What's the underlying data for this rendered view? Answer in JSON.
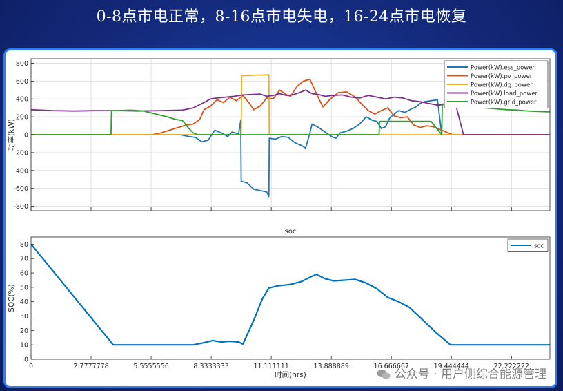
{
  "slide": {
    "title": "0-8点市电正常，8-16点市电失电，16-24点市电恢复"
  },
  "watermark": {
    "text": "公众号 · 用户侧综合能源管理",
    "icon": "wechat-icon"
  },
  "chart_data": [
    {
      "type": "line",
      "title": "",
      "xlabel": "",
      "ylabel": "功率(kW)",
      "xlim": [
        0,
        24
      ],
      "ylim": [
        -850,
        850
      ],
      "yticks": [
        800,
        600,
        400,
        200,
        0,
        -200,
        -400,
        -600,
        -800
      ],
      "grid": true,
      "legend": "top-right",
      "series": [
        {
          "name": "Power(kW).ess_power",
          "color": "#1f77b4",
          "x": [
            0,
            3.7,
            6.9,
            7.3,
            7.6,
            7.9,
            8.2,
            8.5,
            8.8,
            9.1,
            9.3,
            9.6,
            9.7,
            9.72,
            10,
            10.3,
            10.5,
            10.9,
            11.0,
            11.02,
            11.05,
            11.3,
            11.6,
            11.9,
            12.2,
            12.5,
            12.7,
            12.9,
            13.0,
            13.3,
            13.6,
            13.9,
            14.1,
            14.3,
            14.6,
            14.9,
            15.2,
            15.5,
            15.8,
            16.0,
            16.2,
            16.4,
            16.6,
            16.8,
            17.0,
            17.3,
            17.6,
            17.8,
            18.0,
            18.2,
            18.5,
            18.8,
            19.0,
            19.2,
            19.5,
            20.0,
            24
          ],
          "y": [
            0,
            0,
            0,
            -20,
            -30,
            -80,
            -60,
            50,
            20,
            -20,
            30,
            10,
            160,
            -520,
            -540,
            -610,
            -620,
            -640,
            -690,
            -40,
            -40,
            -50,
            -20,
            -30,
            -90,
            -120,
            -150,
            20,
            120,
            80,
            30,
            -20,
            -40,
            20,
            40,
            70,
            120,
            200,
            160,
            150,
            70,
            90,
            190,
            230,
            270,
            250,
            290,
            310,
            350,
            370,
            380,
            390,
            0,
            0,
            0,
            0,
            0
          ]
        },
        {
          "name": "Power(kW).pv_power",
          "color": "#d95319",
          "x": [
            0,
            5.6,
            6.0,
            6.4,
            6.8,
            7.2,
            7.5,
            7.8,
            8.0,
            8.3,
            8.6,
            8.9,
            9.2,
            9.5,
            9.8,
            10.1,
            10.3,
            10.6,
            10.9,
            11.2,
            11.5,
            11.8,
            12.0,
            12.3,
            12.6,
            12.9,
            13.2,
            13.5,
            13.8,
            14.2,
            14.6,
            15.0,
            15.3,
            15.6,
            15.9,
            16.2,
            16.5,
            16.8,
            17.1,
            17.4,
            17.7,
            18.0,
            18.3,
            18.6,
            19.0,
            19.5,
            24
          ],
          "y": [
            0,
            0,
            20,
            50,
            80,
            110,
            120,
            170,
            280,
            320,
            390,
            360,
            420,
            380,
            440,
            350,
            280,
            320,
            410,
            400,
            500,
            450,
            430,
            540,
            600,
            620,
            460,
            310,
            390,
            470,
            480,
            420,
            340,
            270,
            230,
            270,
            300,
            210,
            190,
            200,
            110,
            80,
            100,
            90,
            50,
            0,
            0
          ]
        },
        {
          "name": "Power(kW).dg_power",
          "color": "#edb120",
          "x": [
            0,
            9.72,
            9.74,
            10.3,
            10.8,
            11.0,
            11.02,
            24
          ],
          "y": [
            0,
            0,
            660,
            665,
            670,
            670,
            0,
            0
          ]
        },
        {
          "name": "Power(kW).load_power",
          "color": "#7e2f8e",
          "x": [
            0,
            1,
            2,
            3,
            4,
            5,
            6,
            7,
            7.5,
            8,
            8.3,
            8.6,
            9.0,
            9.4,
            9.8,
            10.2,
            10.6,
            10.9,
            11.2,
            11.5,
            11.8,
            12.1,
            12.4,
            12.7,
            13.0,
            13.3,
            13.6,
            14.0,
            14.4,
            14.8,
            15.2,
            15.6,
            16.0,
            16.4,
            16.8,
            17.2,
            17.6,
            18.0,
            18.4,
            18.8,
            19.2,
            19.6,
            20.0,
            24
          ],
          "y": [
            280,
            270,
            265,
            270,
            270,
            265,
            270,
            275,
            300,
            360,
            400,
            410,
            420,
            430,
            445,
            450,
            455,
            430,
            440,
            460,
            440,
            445,
            470,
            500,
            460,
            450,
            430,
            440,
            445,
            420,
            410,
            440,
            420,
            400,
            420,
            410,
            380,
            370,
            350,
            330,
            340,
            380,
            0,
            0
          ]
        },
        {
          "name": "Power(kW).grid_power",
          "color": "#2ca02c",
          "x": [
            0,
            3.7,
            3.72,
            4.0,
            4.6,
            5.2,
            5.8,
            6.3,
            6.7,
            7.0,
            7.3,
            7.5,
            7.7,
            8.0,
            8.5,
            9.0,
            9.72,
            11.0,
            15.5,
            16.1,
            16.12,
            18.5,
            19.0,
            19.02,
            20.0,
            20.5,
            21.0,
            21.5,
            22.0,
            22.5,
            23.0,
            23.5,
            24
          ],
          "y": [
            0,
            0,
            270,
            270,
            275,
            265,
            230,
            200,
            170,
            160,
            70,
            20,
            0,
            0,
            0,
            0,
            0,
            0,
            0,
            0,
            150,
            150,
            0,
            340,
            400,
            360,
            300,
            290,
            280,
            275,
            265,
            260,
            255
          ]
        }
      ]
    },
    {
      "type": "line",
      "title": "soc",
      "xlabel": "时间(hrs)",
      "ylabel": "SOC(%)",
      "xlim": [
        0,
        24
      ],
      "ylim": [
        0,
        85
      ],
      "yticks": [
        80,
        70,
        60,
        50,
        40,
        30,
        20,
        10,
        0
      ],
      "xticks": [
        0,
        2.7777778,
        5.5555556,
        8.3333333,
        11.111111,
        13.888889,
        16.666667,
        19.444444,
        22.222222
      ],
      "xtick_labels": [
        "0",
        "2.7777778",
        "5.5555556",
        "8.3333333",
        "11.111111",
        "13.888889",
        "16.666667",
        "19.444444",
        "22.222222"
      ],
      "grid": false,
      "legend": "top-right",
      "series": [
        {
          "name": "soc",
          "color": "#0072bd",
          "x": [
            0,
            3.8,
            7.5,
            8.0,
            8.4,
            8.8,
            9.2,
            9.6,
            9.8,
            10.3,
            10.7,
            11.0,
            11.4,
            12.0,
            12.5,
            12.9,
            13.2,
            13.6,
            14.0,
            14.5,
            15.0,
            15.5,
            16.0,
            16.5,
            17.0,
            17.5,
            18.0,
            18.7,
            19.4,
            24
          ],
          "y": [
            80,
            10,
            10,
            11.5,
            13,
            12,
            12.5,
            12,
            10.5,
            27,
            42,
            49.5,
            51,
            52,
            54,
            57,
            59,
            56,
            54.5,
            55,
            55.5,
            53,
            49,
            43,
            40,
            36,
            29,
            19,
            10,
            10
          ]
        }
      ]
    }
  ]
}
